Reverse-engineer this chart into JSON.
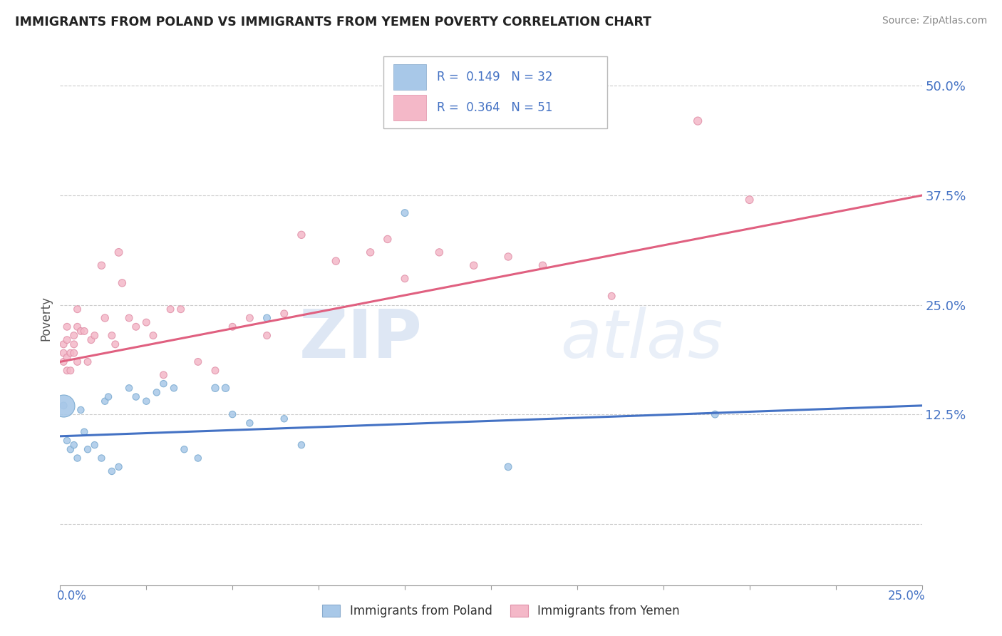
{
  "title": "IMMIGRANTS FROM POLAND VS IMMIGRANTS FROM YEMEN POVERTY CORRELATION CHART",
  "source": "Source: ZipAtlas.com",
  "ylabel": "Poverty",
  "xlim": [
    0.0,
    0.25
  ],
  "ylim": [
    -0.07,
    0.54
  ],
  "yticks": [
    0.0,
    0.125,
    0.25,
    0.375,
    0.5
  ],
  "ytick_labels": [
    "",
    "12.5%",
    "25.0%",
    "37.5%",
    "50.0%"
  ],
  "legend_text1": "R =  0.149   N = 32",
  "legend_text2": "R =  0.364   N = 51",
  "poland_color": "#a8c8e8",
  "yemen_color": "#f4b8c8",
  "poland_line_color": "#4472c4",
  "yemen_line_color": "#e06080",
  "tick_color": "#4472c4",
  "background_color": "#ffffff",
  "watermark_zip": "ZIP",
  "watermark_atlas": "atlas",
  "poland_points": [
    [
      0.001,
      0.135
    ],
    [
      0.002,
      0.095
    ],
    [
      0.003,
      0.085
    ],
    [
      0.004,
      0.09
    ],
    [
      0.005,
      0.075
    ],
    [
      0.006,
      0.13
    ],
    [
      0.007,
      0.105
    ],
    [
      0.008,
      0.085
    ],
    [
      0.01,
      0.09
    ],
    [
      0.012,
      0.075
    ],
    [
      0.013,
      0.14
    ],
    [
      0.014,
      0.145
    ],
    [
      0.015,
      0.06
    ],
    [
      0.017,
      0.065
    ],
    [
      0.02,
      0.155
    ],
    [
      0.022,
      0.145
    ],
    [
      0.025,
      0.14
    ],
    [
      0.028,
      0.15
    ],
    [
      0.03,
      0.16
    ],
    [
      0.033,
      0.155
    ],
    [
      0.036,
      0.085
    ],
    [
      0.04,
      0.075
    ],
    [
      0.045,
      0.155
    ],
    [
      0.048,
      0.155
    ],
    [
      0.05,
      0.125
    ],
    [
      0.055,
      0.115
    ],
    [
      0.06,
      0.235
    ],
    [
      0.065,
      0.12
    ],
    [
      0.07,
      0.09
    ],
    [
      0.1,
      0.355
    ],
    [
      0.13,
      0.065
    ],
    [
      0.19,
      0.125
    ]
  ],
  "poland_sizes": [
    50,
    45,
    45,
    45,
    45,
    45,
    45,
    45,
    45,
    45,
    45,
    45,
    45,
    45,
    45,
    45,
    45,
    45,
    45,
    45,
    45,
    45,
    55,
    55,
    45,
    45,
    50,
    45,
    45,
    50,
    50,
    50
  ],
  "yemen_points": [
    [
      0.001,
      0.185
    ],
    [
      0.001,
      0.195
    ],
    [
      0.001,
      0.205
    ],
    [
      0.002,
      0.19
    ],
    [
      0.002,
      0.175
    ],
    [
      0.002,
      0.21
    ],
    [
      0.002,
      0.225
    ],
    [
      0.003,
      0.195
    ],
    [
      0.003,
      0.175
    ],
    [
      0.004,
      0.195
    ],
    [
      0.004,
      0.215
    ],
    [
      0.004,
      0.205
    ],
    [
      0.005,
      0.225
    ],
    [
      0.005,
      0.245
    ],
    [
      0.005,
      0.185
    ],
    [
      0.006,
      0.22
    ],
    [
      0.007,
      0.22
    ],
    [
      0.008,
      0.185
    ],
    [
      0.009,
      0.21
    ],
    [
      0.01,
      0.215
    ],
    [
      0.012,
      0.295
    ],
    [
      0.013,
      0.235
    ],
    [
      0.015,
      0.215
    ],
    [
      0.016,
      0.205
    ],
    [
      0.017,
      0.31
    ],
    [
      0.018,
      0.275
    ],
    [
      0.02,
      0.235
    ],
    [
      0.022,
      0.225
    ],
    [
      0.025,
      0.23
    ],
    [
      0.027,
      0.215
    ],
    [
      0.03,
      0.17
    ],
    [
      0.032,
      0.245
    ],
    [
      0.035,
      0.245
    ],
    [
      0.04,
      0.185
    ],
    [
      0.045,
      0.175
    ],
    [
      0.05,
      0.225
    ],
    [
      0.055,
      0.235
    ],
    [
      0.06,
      0.215
    ],
    [
      0.065,
      0.24
    ],
    [
      0.07,
      0.33
    ],
    [
      0.08,
      0.3
    ],
    [
      0.09,
      0.31
    ],
    [
      0.095,
      0.325
    ],
    [
      0.1,
      0.28
    ],
    [
      0.11,
      0.31
    ],
    [
      0.12,
      0.295
    ],
    [
      0.13,
      0.305
    ],
    [
      0.14,
      0.295
    ],
    [
      0.16,
      0.26
    ],
    [
      0.185,
      0.46
    ],
    [
      0.2,
      0.37
    ]
  ],
  "yemen_sizes": [
    50,
    50,
    50,
    50,
    50,
    50,
    50,
    50,
    50,
    50,
    50,
    50,
    50,
    50,
    50,
    50,
    50,
    50,
    50,
    50,
    55,
    55,
    50,
    50,
    60,
    55,
    50,
    50,
    50,
    50,
    50,
    50,
    50,
    50,
    50,
    50,
    50,
    50,
    50,
    55,
    55,
    55,
    55,
    50,
    55,
    55,
    55,
    55,
    50,
    65,
    60
  ],
  "poland_trendline_x": [
    0.0,
    0.25
  ],
  "poland_trendline_y": [
    0.1,
    0.135
  ],
  "yemen_trendline_x": [
    0.0,
    0.25
  ],
  "yemen_trendline_y": [
    0.185,
    0.375
  ]
}
